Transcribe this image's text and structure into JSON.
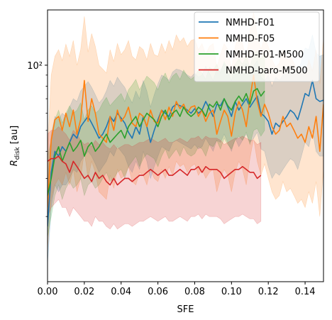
{
  "chart_data": {
    "type": "line",
    "xlabel": "SFE",
    "ylabel_main": "R",
    "ylabel_sub": "disk",
    "ylabel_unit": "[au]",
    "xlim": [
      0.0,
      0.15
    ],
    "ylim": [
      10,
      180
    ],
    "yscale": "log",
    "x_ticks": [
      0.0,
      0.02,
      0.04,
      0.06,
      0.08,
      0.1,
      0.12,
      0.14
    ],
    "x_tick_labels": [
      "0.00",
      "0.02",
      "0.04",
      "0.06",
      "0.08",
      "0.10",
      "0.12",
      "0.14"
    ],
    "y_major_ticks": [
      100
    ],
    "y_major_tick_labels": [
      "10²"
    ],
    "y_minor_ticks": [
      20,
      30,
      40,
      50,
      60,
      70,
      80,
      90
    ],
    "legend_position": "top-right",
    "grid": false,
    "band_opacity": 0.2,
    "series": [
      {
        "name": "NMHD-F01",
        "color": "#1f77b4",
        "x": [
          0.0,
          0.002,
          0.004,
          0.006,
          0.008,
          0.01,
          0.012,
          0.014,
          0.016,
          0.018,
          0.02,
          0.022,
          0.024,
          0.026,
          0.028,
          0.03,
          0.032,
          0.034,
          0.036,
          0.038,
          0.04,
          0.042,
          0.044,
          0.046,
          0.048,
          0.05,
          0.052,
          0.054,
          0.056,
          0.058,
          0.06,
          0.062,
          0.064,
          0.066,
          0.068,
          0.07,
          0.072,
          0.074,
          0.076,
          0.078,
          0.08,
          0.082,
          0.084,
          0.086,
          0.088,
          0.09,
          0.092,
          0.094,
          0.096,
          0.098,
          0.1,
          0.102,
          0.104,
          0.106,
          0.108,
          0.11,
          0.112,
          0.114,
          0.116,
          0.118,
          0.12,
          0.122,
          0.124,
          0.126,
          0.128,
          0.13,
          0.132,
          0.134,
          0.136,
          0.138,
          0.14,
          0.142,
          0.144,
          0.146,
          0.148,
          0.15
        ],
        "y": [
          18,
          32,
          40,
          38,
          42,
          40,
          44,
          48,
          46,
          52,
          55,
          58,
          54,
          50,
          46,
          48,
          52,
          58,
          55,
          60,
          57,
          54,
          49,
          46,
          52,
          48,
          58,
          52,
          44,
          50,
          56,
          62,
          60,
          58,
          64,
          66,
          65,
          64,
          62,
          60,
          63,
          60,
          62,
          68,
          63,
          58,
          66,
          65,
          70,
          64,
          58,
          68,
          62,
          66,
          70,
          64,
          68,
          72,
          60,
          58,
          55,
          48,
          54,
          52,
          55,
          58,
          62,
          60,
          56,
          64,
          74,
          72,
          85,
          70,
          68,
          69
        ],
        "lower": [
          12,
          22,
          28,
          26,
          28,
          28,
          30,
          33,
          32,
          36,
          38,
          40,
          38,
          35,
          32,
          34,
          36,
          40,
          38,
          42,
          40,
          38,
          34,
          32,
          36,
          33,
          40,
          36,
          30,
          34,
          38,
          42,
          41,
          40,
          44,
          45,
          44,
          43,
          42,
          41,
          43,
          41,
          42,
          46,
          43,
          40,
          45,
          44,
          48,
          44,
          40,
          46,
          42,
          45,
          48,
          44,
          46,
          49,
          41,
          40,
          34,
          30,
          32,
          31,
          33,
          35,
          37,
          36,
          33,
          38,
          44,
          42,
          50,
          40,
          38,
          38
        ],
        "upper": [
          28,
          48,
          58,
          56,
          60,
          58,
          64,
          70,
          68,
          76,
          80,
          84,
          79,
          73,
          67,
          70,
          76,
          85,
          80,
          88,
          83,
          79,
          72,
          67,
          76,
          70,
          85,
          76,
          64,
          73,
          82,
          90,
          88,
          85,
          93,
          96,
          95,
          93,
          90,
          88,
          92,
          88,
          90,
          99,
          92,
          85,
          96,
          95,
          102,
          93,
          85,
          99,
          90,
          96,
          102,
          93,
          99,
          105,
          88,
          85,
          90,
          80,
          88,
          85,
          90,
          95,
          100,
          97,
          92,
          104,
          120,
          118,
          138,
          114,
          110,
          112
        ]
      },
      {
        "name": "NMHD-F05",
        "color": "#ff7f0e",
        "x": [
          0.0,
          0.002,
          0.004,
          0.006,
          0.008,
          0.01,
          0.012,
          0.014,
          0.016,
          0.018,
          0.02,
          0.022,
          0.024,
          0.026,
          0.028,
          0.03,
          0.032,
          0.034,
          0.036,
          0.038,
          0.04,
          0.042,
          0.044,
          0.046,
          0.048,
          0.05,
          0.052,
          0.054,
          0.056,
          0.058,
          0.06,
          0.062,
          0.064,
          0.066,
          0.068,
          0.07,
          0.072,
          0.074,
          0.076,
          0.078,
          0.08,
          0.082,
          0.084,
          0.086,
          0.088,
          0.09,
          0.092,
          0.094,
          0.096,
          0.098,
          0.1,
          0.102,
          0.104,
          0.106,
          0.108,
          0.11,
          0.112,
          0.114,
          0.116,
          0.118,
          0.12,
          0.122,
          0.124,
          0.126,
          0.128,
          0.13,
          0.132,
          0.134,
          0.136,
          0.138,
          0.14,
          0.142,
          0.144,
          0.146,
          0.148,
          0.15
        ],
        "y": [
          22,
          45,
          56,
          58,
          50,
          60,
          52,
          62,
          48,
          56,
          85,
          55,
          70,
          60,
          48,
          46,
          44,
          58,
          50,
          62,
          55,
          58,
          64,
          54,
          52,
          60,
          58,
          52,
          62,
          55,
          54,
          62,
          56,
          64,
          58,
          68,
          63,
          66,
          60,
          64,
          65,
          58,
          62,
          55,
          60,
          62,
          48,
          55,
          62,
          58,
          47,
          60,
          68,
          62,
          52,
          70,
          90,
          68,
          58,
          66,
          60,
          52,
          48,
          50,
          58,
          52,
          54,
          50,
          46,
          48,
          44,
          52,
          46,
          58,
          40,
          66
        ],
        "lower": [
          14,
          24,
          28,
          30,
          28,
          32,
          28,
          33,
          26,
          30,
          40,
          30,
          36,
          32,
          26,
          25,
          24,
          31,
          27,
          33,
          30,
          31,
          34,
          29,
          28,
          32,
          31,
          28,
          33,
          30,
          29,
          33,
          30,
          34,
          31,
          36,
          34,
          35,
          32,
          34,
          35,
          31,
          33,
          30,
          32,
          33,
          26,
          30,
          33,
          31,
          26,
          32,
          36,
          33,
          28,
          37,
          46,
          36,
          31,
          35,
          30,
          26,
          24,
          25,
          29,
          26,
          27,
          25,
          23,
          24,
          22,
          26,
          23,
          29,
          20,
          33
        ],
        "upper": [
          40,
          90,
          110,
          118,
          105,
          125,
          110,
          130,
          100,
          118,
          168,
          115,
          140,
          122,
          100,
          96,
          92,
          118,
          104,
          126,
          112,
          118,
          130,
          110,
          106,
          122,
          118,
          106,
          126,
          112,
          110,
          126,
          114,
          130,
          118,
          138,
          128,
          134,
          122,
          130,
          132,
          118,
          126,
          112,
          122,
          126,
          98,
          112,
          126,
          118,
          96,
          122,
          138,
          126,
          106,
          142,
          175,
          138,
          118,
          134,
          122,
          106,
          98,
          102,
          118,
          106,
          110,
          102,
          94,
          98,
          90,
          106,
          94,
          118,
          82,
          134
        ]
      },
      {
        "name": "NMHD-F01-M500",
        "color": "#2ca02c",
        "x": [
          0.0,
          0.002,
          0.004,
          0.006,
          0.008,
          0.01,
          0.012,
          0.014,
          0.016,
          0.018,
          0.02,
          0.022,
          0.024,
          0.026,
          0.028,
          0.03,
          0.032,
          0.034,
          0.036,
          0.038,
          0.04,
          0.042,
          0.044,
          0.046,
          0.048,
          0.05,
          0.052,
          0.054,
          0.056,
          0.058,
          0.06,
          0.062,
          0.064,
          0.066,
          0.068,
          0.07,
          0.072,
          0.074,
          0.076,
          0.078,
          0.08,
          0.082,
          0.084,
          0.086,
          0.088,
          0.09,
          0.092,
          0.094,
          0.096,
          0.098,
          0.1,
          0.102,
          0.104,
          0.106,
          0.108,
          0.11,
          0.112,
          0.114,
          0.116,
          0.118
        ],
        "y": [
          25,
          30,
          38,
          42,
          36,
          40,
          44,
          40,
          42,
          45,
          38,
          42,
          44,
          40,
          42,
          45,
          48,
          44,
          46,
          48,
          50,
          46,
          52,
          55,
          58,
          52,
          56,
          60,
          58,
          56,
          52,
          58,
          62,
          56,
          60,
          62,
          58,
          64,
          60,
          58,
          60,
          64,
          62,
          58,
          66,
          64,
          68,
          62,
          70,
          65,
          62,
          68,
          72,
          68,
          74,
          66,
          76,
          78,
          72,
          76
        ],
        "lower": [
          16,
          20,
          25,
          28,
          24,
          27,
          29,
          27,
          28,
          30,
          25,
          28,
          29,
          27,
          28,
          30,
          32,
          29,
          30,
          32,
          33,
          30,
          34,
          36,
          38,
          34,
          37,
          39,
          38,
          37,
          34,
          38,
          41,
          37,
          39,
          41,
          38,
          42,
          39,
          38,
          39,
          42,
          41,
          38,
          43,
          42,
          45,
          41,
          46,
          43,
          41,
          45,
          47,
          45,
          49,
          43,
          50,
          51,
          47,
          50
        ],
        "upper": [
          38,
          45,
          56,
          62,
          54,
          60,
          65,
          60,
          62,
          67,
          56,
          62,
          65,
          60,
          62,
          67,
          71,
          65,
          68,
          71,
          74,
          68,
          77,
          81,
          86,
          77,
          83,
          89,
          86,
          83,
          77,
          86,
          92,
          83,
          89,
          92,
          86,
          95,
          89,
          86,
          89,
          95,
          92,
          86,
          98,
          95,
          101,
          92,
          104,
          96,
          92,
          101,
          107,
          101,
          110,
          98,
          113,
          116,
          107,
          113
        ]
      },
      {
        "name": "NMHD-baro-M500",
        "color": "#d62728",
        "x": [
          0.0,
          0.002,
          0.004,
          0.006,
          0.008,
          0.01,
          0.012,
          0.014,
          0.016,
          0.018,
          0.02,
          0.022,
          0.024,
          0.026,
          0.028,
          0.03,
          0.032,
          0.034,
          0.036,
          0.038,
          0.04,
          0.042,
          0.044,
          0.046,
          0.048,
          0.05,
          0.052,
          0.054,
          0.056,
          0.058,
          0.06,
          0.062,
          0.064,
          0.066,
          0.068,
          0.07,
          0.072,
          0.074,
          0.076,
          0.078,
          0.08,
          0.082,
          0.084,
          0.086,
          0.088,
          0.09,
          0.092,
          0.094,
          0.096,
          0.098,
          0.1,
          0.102,
          0.104,
          0.106,
          0.108,
          0.11,
          0.112,
          0.114,
          0.116
        ],
        "y": [
          36,
          37,
          37,
          38,
          36,
          35,
          32,
          36,
          34,
          32,
          30,
          31,
          29,
          32,
          30,
          31,
          29,
          28,
          30,
          28,
          29,
          30,
          30,
          29,
          30,
          31,
          31,
          32,
          33,
          32,
          31,
          32,
          33,
          31,
          31,
          32,
          33,
          32,
          31,
          33,
          33,
          34,
          32,
          34,
          33,
          33,
          33,
          32,
          30,
          31,
          32,
          33,
          33,
          34,
          33,
          32,
          32,
          30,
          31
        ],
        "lower": [
          20,
          22,
          23,
          24,
          22,
          22,
          20,
          22,
          21,
          20,
          19,
          19,
          18,
          20,
          19,
          19,
          18,
          17.5,
          18.5,
          17.5,
          18,
          18.5,
          18.5,
          18,
          18.5,
          19,
          19,
          19.5,
          20,
          19.5,
          19,
          19.5,
          20,
          19,
          19,
          19.5,
          20,
          19.5,
          19,
          20,
          20,
          20.5,
          19.5,
          20.5,
          20,
          20,
          20,
          19.5,
          18.5,
          19,
          19.5,
          20,
          20,
          20.5,
          20,
          19.5,
          19.5,
          18.5,
          19
        ],
        "upper": [
          48,
          50,
          50,
          52,
          50,
          48,
          45,
          50,
          48,
          45,
          43,
          44,
          42,
          45,
          43,
          44,
          42,
          41,
          43,
          41,
          42,
          43,
          43,
          42,
          43,
          44,
          44,
          45,
          46,
          45,
          44,
          45,
          46,
          44,
          44,
          45,
          46,
          45,
          44,
          46,
          46,
          47,
          45,
          47,
          46,
          46,
          46,
          45,
          43,
          44,
          45,
          46,
          46,
          47,
          46,
          45,
          45,
          43,
          44
        ]
      }
    ]
  }
}
